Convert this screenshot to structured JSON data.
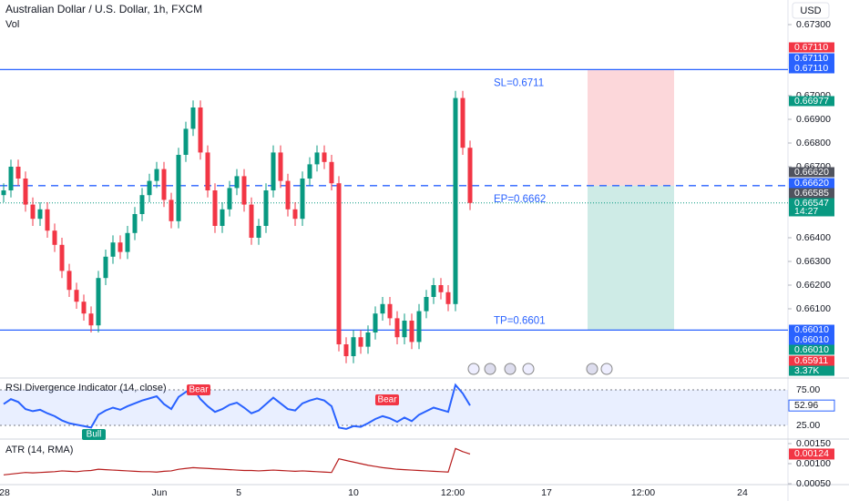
{
  "header": {
    "title": "Australian Dollar / U.S. Dollar, 1h, FXCM",
    "volume_label": "Vol",
    "currency": "USD"
  },
  "chart_data": {
    "type": "candlestick",
    "open": [
      0.6658,
      0.666,
      0.667,
      0.6665,
      0.6654,
      0.6648,
      0.6652,
      0.6643,
      0.6637,
      0.6626,
      0.6618,
      0.6613,
      0.6608,
      0.6603,
      0.6623,
      0.6632,
      0.6638,
      0.6634,
      0.6642,
      0.665,
      0.6658,
      0.6664,
      0.6669,
      0.6656,
      0.6647,
      0.6675,
      0.6686,
      0.6695,
      0.6676,
      0.666,
      0.6645,
      0.6652,
      0.6661,
      0.6666,
      0.6654,
      0.664,
      0.6645,
      0.666,
      0.6676,
      0.6664,
      0.6652,
      0.6648,
      0.6665,
      0.6671,
      0.6676,
      0.6672,
      0.6663,
      0.6595,
      0.659,
      0.6598,
      0.6594,
      0.66,
      0.6608,
      0.6612,
      0.6606,
      0.6598,
      0.6605,
      0.6596,
      0.6609,
      0.6615,
      0.662,
      0.6617,
      0.6612,
      0.6699,
      0.6678
    ],
    "high": [
      0.6663,
      0.6673,
      0.6673,
      0.6668,
      0.6657,
      0.6655,
      0.6655,
      0.6646,
      0.664,
      0.6629,
      0.6621,
      0.6616,
      0.6611,
      0.6626,
      0.6635,
      0.6641,
      0.6641,
      0.6645,
      0.6653,
      0.6661,
      0.6667,
      0.6672,
      0.6672,
      0.6659,
      0.6678,
      0.6689,
      0.6698,
      0.6698,
      0.6679,
      0.6663,
      0.6655,
      0.6664,
      0.6669,
      0.6669,
      0.6657,
      0.6648,
      0.6663,
      0.6679,
      0.6679,
      0.6667,
      0.6655,
      0.6668,
      0.6674,
      0.6679,
      0.6679,
      0.6675,
      0.6666,
      0.6598,
      0.6601,
      0.6601,
      0.6603,
      0.6611,
      0.6615,
      0.6615,
      0.6609,
      0.6608,
      0.6608,
      0.6612,
      0.6618,
      0.6623,
      0.6623,
      0.662,
      0.6702,
      0.6702,
      0.6681
    ],
    "low": [
      0.6655,
      0.6657,
      0.6662,
      0.6651,
      0.6645,
      0.6645,
      0.664,
      0.6634,
      0.6623,
      0.6615,
      0.661,
      0.6605,
      0.66,
      0.66,
      0.662,
      0.6629,
      0.6631,
      0.6631,
      0.6639,
      0.6647,
      0.6655,
      0.6661,
      0.6653,
      0.6644,
      0.6644,
      0.6672,
      0.6683,
      0.6673,
      0.6657,
      0.6642,
      0.6642,
      0.6649,
      0.6658,
      0.6651,
      0.6637,
      0.6637,
      0.6642,
      0.6657,
      0.6661,
      0.6649,
      0.6645,
      0.6645,
      0.6662,
      0.6668,
      0.6669,
      0.666,
      0.6592,
      0.6587,
      0.6587,
      0.6591,
      0.6591,
      0.6597,
      0.6605,
      0.6603,
      0.6595,
      0.6595,
      0.6593,
      0.6593,
      0.6606,
      0.6612,
      0.6614,
      0.6609,
      0.6609,
      0.6675,
      0.66517
    ],
    "close": [
      0.666,
      0.667,
      0.6665,
      0.6654,
      0.6648,
      0.6652,
      0.6643,
      0.6637,
      0.6626,
      0.6618,
      0.6613,
      0.6608,
      0.6603,
      0.6623,
      0.6632,
      0.6638,
      0.6634,
      0.6642,
      0.665,
      0.6658,
      0.6664,
      0.6669,
      0.6656,
      0.6647,
      0.6675,
      0.6686,
      0.6695,
      0.6676,
      0.666,
      0.6645,
      0.6652,
      0.6661,
      0.6666,
      0.6654,
      0.664,
      0.6645,
      0.666,
      0.6676,
      0.6664,
      0.6652,
      0.6648,
      0.6665,
      0.6671,
      0.6676,
      0.6672,
      0.6663,
      0.6595,
      0.659,
      0.6598,
      0.6594,
      0.66,
      0.6608,
      0.6612,
      0.6606,
      0.6598,
      0.6605,
      0.6596,
      0.6609,
      0.6615,
      0.662,
      0.6617,
      0.6612,
      0.6699,
      0.6678,
      0.66547
    ],
    "up_color": "#089981",
    "down_color": "#f23645",
    "yticks": [
      {
        "value": 0.673,
        "label": "0.67300"
      },
      {
        "value": 0.67,
        "label": "0.67000"
      },
      {
        "value": 0.669,
        "label": "0.66900"
      },
      {
        "value": 0.668,
        "label": "0.66800"
      },
      {
        "value": 0.667,
        "label": "0.66700"
      },
      {
        "value": 0.664,
        "label": "0.66400"
      },
      {
        "value": 0.663,
        "label": "0.66300"
      },
      {
        "value": 0.662,
        "label": "0.66200"
      },
      {
        "value": 0.661,
        "label": "0.66100"
      }
    ],
    "levels": [
      {
        "value": 0.6711,
        "label": "SL=0.6711"
      },
      {
        "value": 0.6662,
        "label": "EP=0.6662"
      },
      {
        "value": 0.6601,
        "label": "TP=0.6601"
      }
    ],
    "last_price": 0.66547,
    "badges": [
      {
        "label": "0.67110",
        "color": "#f23645"
      },
      {
        "label": "0.67110",
        "color": "#2962ff"
      },
      {
        "label": "0.67110",
        "color": "#2962ff"
      },
      {
        "label": "0.66977",
        "color": "#089981"
      },
      {
        "label": "0.66620",
        "color": "#50535e"
      },
      {
        "label": "0.66620",
        "color": "#2962ff"
      },
      {
        "label": "0.66585",
        "color": "#50535e"
      },
      {
        "label": "0.66547",
        "color": "#089981"
      },
      {
        "label": "14:27",
        "color": "#089981"
      },
      {
        "label": "0.66010",
        "color": "#2962ff"
      },
      {
        "label": "0.66010",
        "color": "#2962ff"
      },
      {
        "label": "0.66010",
        "color": "#089981"
      },
      {
        "label": "0.65911",
        "color": "#f23645"
      },
      {
        "label": "3.37K",
        "color": "#089981"
      }
    ],
    "time_labels": [
      "28",
      "Jun",
      "5",
      "10",
      "12:00",
      "17",
      "12:00",
      "24"
    ]
  },
  "rsi": {
    "title": "RSI Divergence Indicator (14, close)",
    "color": "#2962ff",
    "values": [
      55,
      62,
      58,
      48,
      45,
      47,
      42,
      38,
      32,
      28,
      26,
      24,
      22,
      40,
      46,
      50,
      47,
      52,
      56,
      60,
      63,
      66,
      55,
      48,
      65,
      72,
      78,
      62,
      52,
      44,
      48,
      54,
      57,
      50,
      42,
      46,
      55,
      64,
      56,
      48,
      46,
      56,
      60,
      63,
      60,
      52,
      22,
      20,
      24,
      23,
      28,
      34,
      38,
      35,
      30,
      36,
      31,
      40,
      45,
      50,
      47,
      44,
      82,
      70,
      53
    ],
    "yticks": [
      {
        "value": 75,
        "label": "75.00"
      },
      {
        "value": 25,
        "label": "25.00"
      }
    ],
    "current": {
      "value": 52.96,
      "label": "52.96"
    },
    "signals": [
      {
        "text": "Bull",
        "color": "#089981"
      },
      {
        "text": "Bear",
        "color": "#f23645"
      },
      {
        "text": "Bear",
        "color": "#f23645"
      }
    ]
  },
  "atr": {
    "title": "ATR (14, RMA)",
    "color": "#b71c1c",
    "values": [
      0.00072,
      0.00074,
      0.00076,
      0.00078,
      0.00077,
      0.00078,
      0.00079,
      0.0008,
      0.00082,
      0.00081,
      0.0008,
      0.00082,
      0.00083,
      0.00086,
      0.00085,
      0.00084,
      0.00083,
      0.00082,
      0.00081,
      0.0008,
      0.0008,
      0.00079,
      0.00081,
      0.00082,
      0.00086,
      0.00088,
      0.0009,
      0.00089,
      0.00088,
      0.00087,
      0.00086,
      0.00085,
      0.00084,
      0.00083,
      0.00083,
      0.00082,
      0.00083,
      0.00084,
      0.00083,
      0.00082,
      0.00081,
      0.00082,
      0.00081,
      0.0008,
      0.00079,
      0.00078,
      0.00112,
      0.00108,
      0.00104,
      0.001,
      0.00096,
      0.00093,
      0.0009,
      0.00088,
      0.00086,
      0.00085,
      0.00084,
      0.00083,
      0.00082,
      0.00081,
      0.0008,
      0.00079,
      0.00138,
      0.0013,
      0.00124
    ],
    "yticks": [
      {
        "value": 0.0015,
        "label": "0.00150"
      },
      {
        "value": 0.001,
        "label": "0.00100"
      },
      {
        "value": 0.0005,
        "label": "0.00050"
      }
    ],
    "current": {
      "value": 0.00124,
      "label": "0.00124"
    }
  }
}
